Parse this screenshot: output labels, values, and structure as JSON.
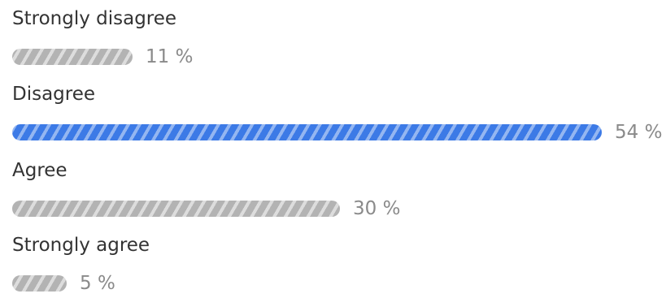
{
  "poll": {
    "accent_color": "#3c7ae6",
    "bar_color": "#b3b3b3",
    "options": [
      {
        "label": "Strongly disagree",
        "percent_text": "11 %",
        "percent": 11,
        "selected": false
      },
      {
        "label": "Disagree",
        "percent_text": "54 %",
        "percent": 54,
        "selected": true
      },
      {
        "label": "Agree",
        "percent_text": "30 %",
        "percent": 30,
        "selected": false
      },
      {
        "label": "Strongly agree",
        "percent_text": "5 %",
        "percent": 5,
        "selected": false
      }
    ]
  }
}
